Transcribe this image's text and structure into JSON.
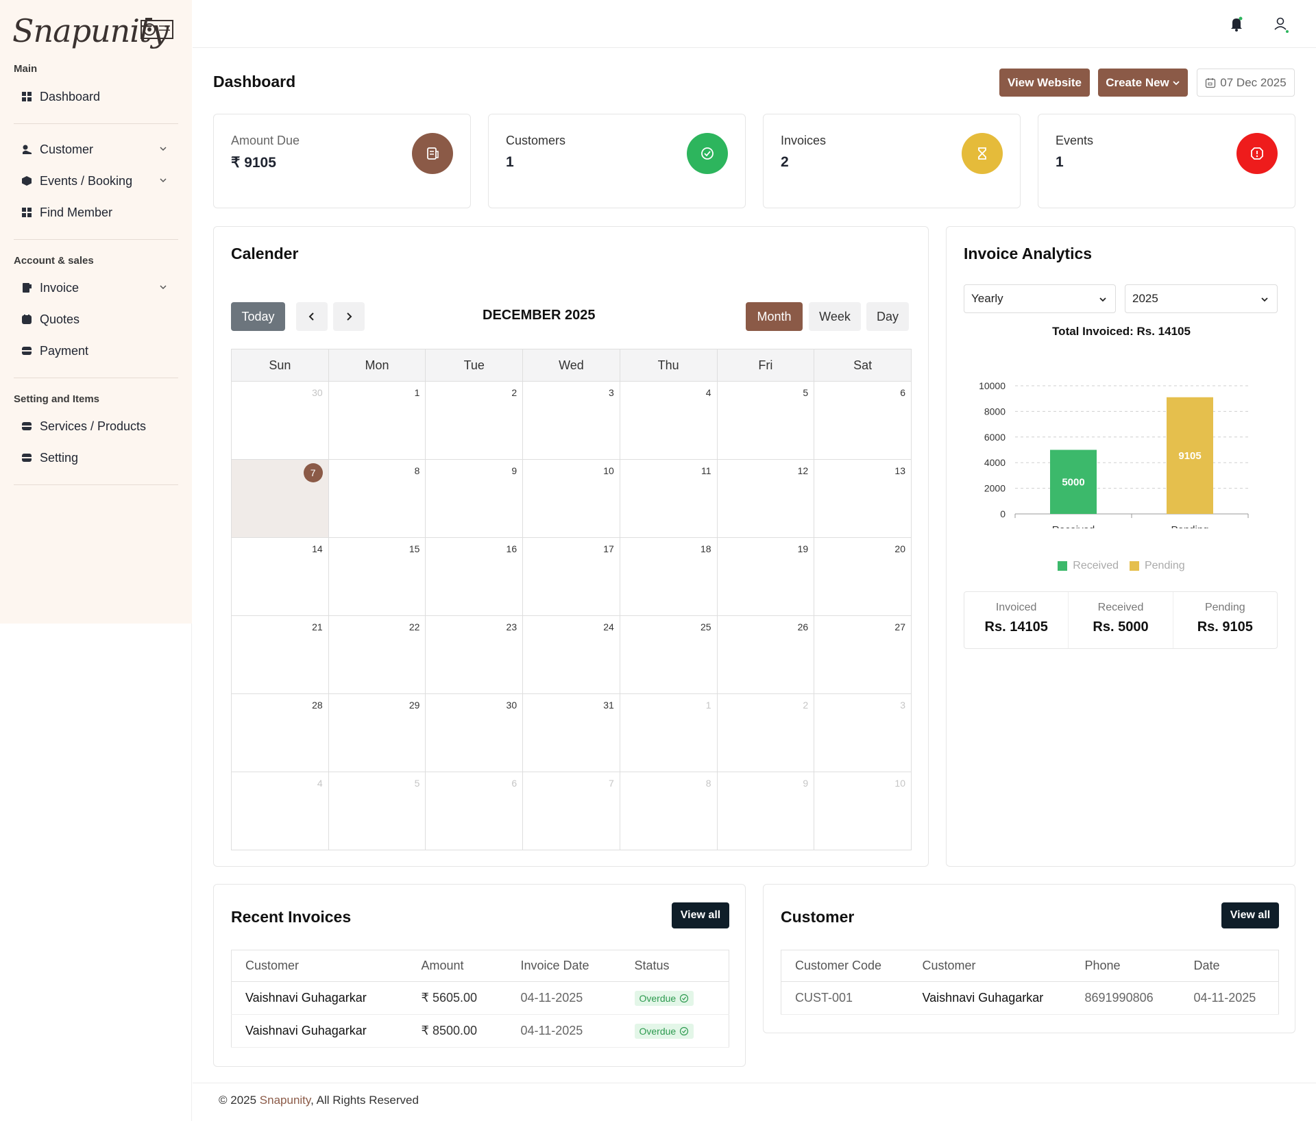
{
  "brand": {
    "name": "Snapunity"
  },
  "sidebar": {
    "sections": [
      {
        "title": "Main",
        "items": [
          {
            "label": "Dashboard",
            "icon": "grid-icon"
          }
        ]
      },
      {
        "title": "",
        "items": [
          {
            "label": "Customer",
            "icon": "person-icon",
            "has_chevron": true
          },
          {
            "label": "Events / Booking",
            "icon": "cube-icon",
            "has_chevron": true
          },
          {
            "label": "Find Member",
            "icon": "grid-icon"
          }
        ]
      },
      {
        "title": "Account & sales",
        "items": [
          {
            "label": "Invoice",
            "icon": "invoice-icon",
            "has_chevron": true
          },
          {
            "label": "Quotes",
            "icon": "quote-icon"
          },
          {
            "label": "Payment",
            "icon": "payment-icon"
          }
        ]
      },
      {
        "title": "Setting and Items",
        "items": [
          {
            "label": "Services / Products",
            "icon": "box-icon"
          },
          {
            "label": "Setting",
            "icon": "box-icon"
          }
        ]
      }
    ]
  },
  "header": {
    "page_title": "Dashboard",
    "view_website": "View Website",
    "create_new": "Create New",
    "date": "07 Dec 2025"
  },
  "stats": [
    {
      "label": "Amount Due",
      "value": "₹ 9105",
      "color": "#8b5a47",
      "icon": "receipt-icon"
    },
    {
      "label": "Customers",
      "value": "1",
      "color": "#2db55d",
      "icon": "check-circle-icon"
    },
    {
      "label": "Invoices",
      "value": "2",
      "color": "#e5bb3a",
      "icon": "hourglass-icon"
    },
    {
      "label": "Events",
      "value": "1",
      "color": "#ee1c1c",
      "icon": "alert-icon"
    }
  ],
  "calendar": {
    "title": "Calender",
    "today_btn": "Today",
    "month_label": "DECEMBER 2025",
    "views": [
      "Month",
      "Week",
      "Day"
    ],
    "active_view": "Month",
    "weekdays": [
      "Sun",
      "Mon",
      "Tue",
      "Wed",
      "Thu",
      "Fri",
      "Sat"
    ],
    "weeks": [
      [
        [
          "30",
          1
        ],
        [
          "1",
          0
        ],
        [
          "2",
          0
        ],
        [
          "3",
          0
        ],
        [
          "4",
          0
        ],
        [
          "5",
          0
        ],
        [
          "6",
          0
        ]
      ],
      [
        [
          "7",
          2
        ],
        [
          "8",
          0
        ],
        [
          "9",
          0
        ],
        [
          "10",
          0
        ],
        [
          "11",
          0
        ],
        [
          "12",
          0
        ],
        [
          "13",
          0
        ]
      ],
      [
        [
          "14",
          0
        ],
        [
          "15",
          0
        ],
        [
          "16",
          0
        ],
        [
          "17",
          0
        ],
        [
          "18",
          0
        ],
        [
          "19",
          0
        ],
        [
          "20",
          0
        ]
      ],
      [
        [
          "21",
          0
        ],
        [
          "22",
          0
        ],
        [
          "23",
          0
        ],
        [
          "24",
          0
        ],
        [
          "25",
          0
        ],
        [
          "26",
          0
        ],
        [
          "27",
          0
        ]
      ],
      [
        [
          "28",
          0
        ],
        [
          "29",
          0
        ],
        [
          "30",
          0
        ],
        [
          "31",
          0
        ],
        [
          "1",
          1
        ],
        [
          "2",
          1
        ],
        [
          "3",
          1
        ]
      ],
      [
        [
          "4",
          1
        ],
        [
          "5",
          1
        ],
        [
          "6",
          1
        ],
        [
          "7",
          1
        ],
        [
          "8",
          1
        ],
        [
          "9",
          1
        ],
        [
          "10",
          1
        ]
      ]
    ]
  },
  "analytics": {
    "title": "Invoice Analytics",
    "period_select": "Yearly",
    "year_select": "2025",
    "summary": [
      {
        "label": "Invoiced",
        "value": "Rs. 14105"
      },
      {
        "label": "Received",
        "value": "Rs. 5000"
      },
      {
        "label": "Pending",
        "value": "Rs. 9105"
      }
    ]
  },
  "chart_data": {
    "type": "bar",
    "title": "Total Invoiced: Rs. 14105",
    "categories": [
      "Received",
      "Pending"
    ],
    "values": [
      5000,
      9105
    ],
    "colors": [
      "#3cb96b",
      "#e5bf4d"
    ],
    "legend": [
      "Received",
      "Pending"
    ],
    "legend_position": "bottom",
    "ylim": [
      0,
      10000
    ],
    "yticks": [
      "0",
      "2000",
      "4000",
      "6000",
      "8000",
      "10000"
    ],
    "grid": true
  },
  "recent_invoices": {
    "title": "Recent Invoices",
    "view_all": "View all",
    "columns": [
      "Customer",
      "Amount",
      "Invoice Date",
      "Status"
    ],
    "rows": [
      {
        "customer": "Vaishnavi Guhagarkar",
        "amount": "₹ 5605.00",
        "date": "04-11-2025",
        "status": "Overdue"
      },
      {
        "customer": "Vaishnavi Guhagarkar",
        "amount": "₹ 8500.00",
        "date": "04-11-2025",
        "status": "Overdue"
      }
    ]
  },
  "customers": {
    "title": "Customer",
    "view_all": "View all",
    "columns": [
      "Customer Code",
      "Customer",
      "Phone",
      "Date"
    ],
    "rows": [
      {
        "code": "CUST-001",
        "customer": "Vaishnavi Guhagarkar",
        "phone": "8691990806",
        "date": "04-11-2025"
      }
    ]
  },
  "footer": {
    "prefix": "© 2025 ",
    "brand": "Snapunity",
    "suffix": ", All Rights Reserved"
  }
}
